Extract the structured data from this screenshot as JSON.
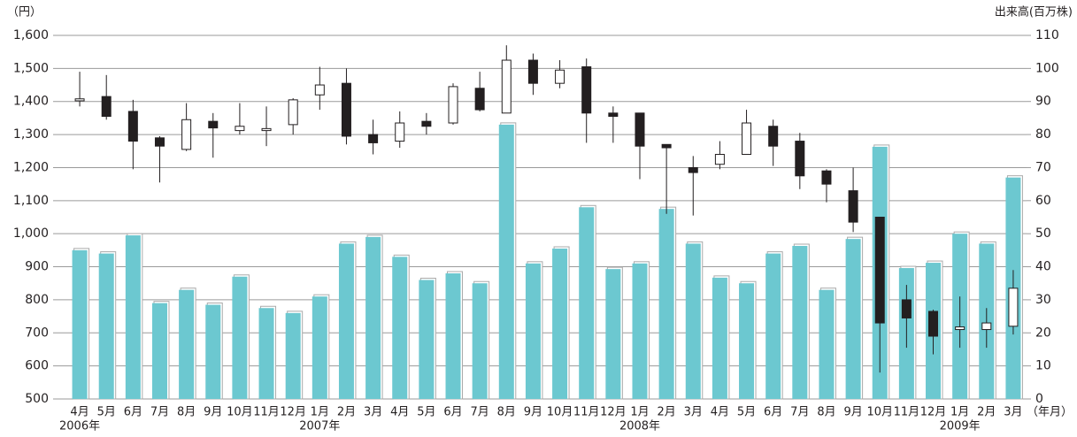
{
  "chart_data": {
    "type": "candlestick",
    "y_label": "（円）",
    "y2_label": "出来高(百万株)",
    "x_label": "（年月）",
    "categories": [
      "4月",
      "5月",
      "6月",
      "7月",
      "8月",
      "9月",
      "10月",
      "11月",
      "12月",
      "1月",
      "2月",
      "3月",
      "4月",
      "5月",
      "6月",
      "7月",
      "8月",
      "9月",
      "10月",
      "11月",
      "12月",
      "1月",
      "2月",
      "3月",
      "4月",
      "5月",
      "6月",
      "7月",
      "8月",
      "9月",
      "10月",
      "11月",
      "12月",
      "1月",
      "2月",
      "3月"
    ],
    "category_years": [
      "2006年",
      null,
      null,
      null,
      null,
      null,
      null,
      null,
      null,
      "2007年",
      null,
      null,
      null,
      null,
      null,
      null,
      null,
      null,
      null,
      null,
      null,
      "2008年",
      null,
      null,
      null,
      null,
      null,
      null,
      null,
      null,
      null,
      null,
      null,
      "2009年",
      null,
      null
    ],
    "ylim": [
      500,
      1600
    ],
    "yticks": [
      500,
      600,
      700,
      800,
      900,
      {
        "value": 1000,
        "label": "1,000"
      },
      {
        "value": 1100,
        "label": "1,100"
      },
      {
        "value": 1200,
        "label": "1,200"
      },
      {
        "value": 1300,
        "label": "1,300"
      },
      {
        "value": 1400,
        "label": "1,400"
      },
      {
        "value": 1500,
        "label": "1,500"
      },
      {
        "value": 1600,
        "label": "1,600"
      }
    ],
    "y2lim": [
      0,
      110
    ],
    "y2ticks": [
      0,
      10,
      20,
      30,
      40,
      50,
      60,
      70,
      80,
      90,
      100,
      110
    ],
    "grid": true,
    "volume": {
      "type": "bar",
      "axis": "y2",
      "color": "#6cc8d0",
      "values": [
        45,
        44,
        49.5,
        29,
        33,
        28.5,
        37,
        27.5,
        26,
        31,
        47,
        49,
        43,
        36,
        38,
        35,
        83,
        41,
        45.5,
        58,
        39.3,
        41,
        57.5,
        47,
        36.7,
        35,
        44,
        46.3,
        33,
        48.4,
        76.3,
        39.6,
        41.2,
        50,
        47,
        67
      ]
    },
    "price": {
      "color_up": "#ffffff",
      "color_down": "#231f20",
      "open": [
        1402,
        1415,
        1370,
        1290,
        1255,
        1340,
        1312,
        1312,
        1330,
        1420,
        1455,
        1300,
        1280,
        1340,
        1335,
        1440,
        1365,
        1525,
        1455,
        1505,
        1365,
        1365,
        1270,
        1200,
        1210,
        1240,
        1325,
        1280,
        1190,
        1130,
        1050,
        800,
        765,
        710,
        710,
        720
      ],
      "high": [
        1490,
        1480,
        1405,
        1295,
        1395,
        1365,
        1395,
        1385,
        1410,
        1505,
        1500,
        1345,
        1370,
        1365,
        1455,
        1490,
        1570,
        1545,
        1525,
        1530,
        1385,
        1365,
        1270,
        1235,
        1280,
        1375,
        1345,
        1305,
        1195,
        1200,
        1050,
        845,
        770,
        810,
        775,
        890
      ],
      "low": [
        1385,
        1345,
        1195,
        1155,
        1250,
        1230,
        1300,
        1265,
        1300,
        1375,
        1270,
        1240,
        1260,
        1300,
        1330,
        1370,
        1365,
        1420,
        1440,
        1275,
        1275,
        1165,
        1060,
        1055,
        1195,
        1240,
        1205,
        1135,
        1095,
        1005,
        580,
        655,
        635,
        655,
        655,
        695
      ],
      "close": [
        1408,
        1355,
        1280,
        1265,
        1345,
        1320,
        1325,
        1318,
        1405,
        1450,
        1295,
        1275,
        1335,
        1325,
        1445,
        1375,
        1525,
        1455,
        1495,
        1365,
        1355,
        1265,
        1260,
        1185,
        1240,
        1335,
        1265,
        1175,
        1150,
        1035,
        730,
        745,
        690,
        718,
        730,
        835
      ]
    }
  }
}
